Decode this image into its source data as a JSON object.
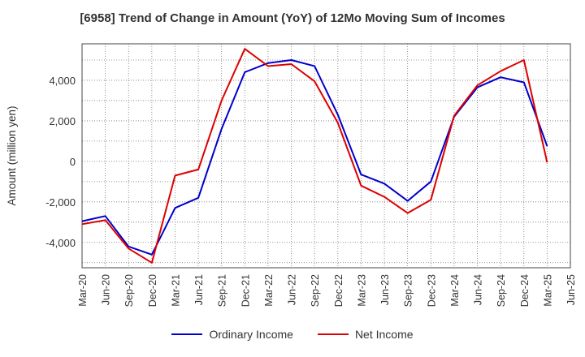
{
  "chart_data": {
    "type": "line",
    "title": "[6958]  Trend of Change in Amount (YoY) of 12Mo Moving Sum of Incomes",
    "ylabel": "Amount (million yen)",
    "xlabel": "",
    "ylim": [
      -5250,
      5800
    ],
    "yticks": [
      -4000,
      -2000,
      0,
      2000,
      4000
    ],
    "ytick_labels": [
      "-4,000",
      "-2,000",
      "0",
      "2,000",
      "4,000"
    ],
    "x": [
      "Mar-20",
      "Jun-20",
      "Sep-20",
      "Dec-20",
      "Mar-21",
      "Jun-21",
      "Sep-21",
      "Dec-21",
      "Mar-22",
      "Jun-22",
      "Sep-22",
      "Dec-22",
      "Mar-23",
      "Jun-23",
      "Sep-23",
      "Dec-23",
      "Mar-24",
      "Jun-24",
      "Sep-24",
      "Dec-24",
      "Mar-25",
      "Jun-25"
    ],
    "grid": true,
    "legend_position": "bottom",
    "series": [
      {
        "name": "Ordinary Income",
        "color": "#0000cc",
        "values": [
          -2950,
          -2700,
          -4200,
          -4600,
          -2300,
          -1800,
          1600,
          4400,
          4850,
          5000,
          4700,
          2300,
          -650,
          -1100,
          -1950,
          -1000,
          2200,
          3650,
          4150,
          3900,
          750,
          null
        ]
      },
      {
        "name": "Net Income",
        "color": "#dd0000",
        "values": [
          -3100,
          -2900,
          -4300,
          -5000,
          -700,
          -400,
          3000,
          5550,
          4700,
          4800,
          3950,
          1900,
          -1200,
          -1750,
          -2550,
          -1900,
          2250,
          3750,
          4450,
          5000,
          -50,
          null
        ]
      }
    ]
  }
}
